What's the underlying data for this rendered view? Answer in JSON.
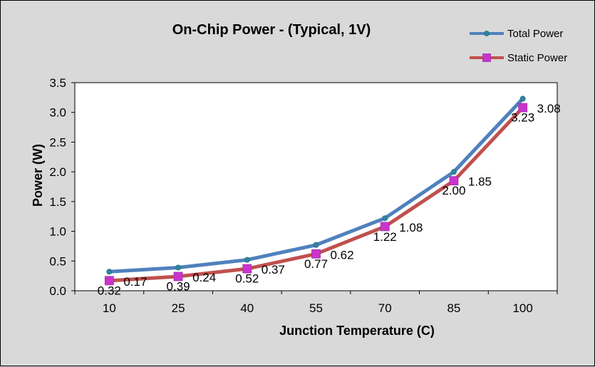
{
  "chart_data": {
    "type": "line",
    "title": "On-Chip Power - (Typical, 1V)",
    "xlabel": "Junction Temperature (C)",
    "ylabel": "Power (W)",
    "categories": [
      "10",
      "25",
      "40",
      "55",
      "70",
      "85",
      "100"
    ],
    "ylim": [
      0,
      3.5
    ],
    "yticks": [
      "0.0",
      "0.5",
      "1.0",
      "1.5",
      "2.0",
      "2.5",
      "3.0",
      "3.5"
    ],
    "grid": false,
    "legend_position": "top-right",
    "series": [
      {
        "name": "Total Power",
        "color": "#4f81bd",
        "marker_color": "#31859c",
        "marker": "circle",
        "values": [
          0.32,
          0.39,
          0.52,
          0.77,
          1.22,
          2.0,
          3.23
        ],
        "labels": [
          "0.32",
          "0.39",
          "0.52",
          "0.77",
          "1.22",
          "2.00",
          "3.23"
        ]
      },
      {
        "name": "Static Power",
        "color": "#c0504d",
        "marker_color": "#cc33cc",
        "marker": "square",
        "values": [
          0.17,
          0.24,
          0.37,
          0.62,
          1.08,
          1.85,
          3.08
        ],
        "labels": [
          "0.17",
          "0.24",
          "0.37",
          "0.62",
          "1.08",
          "1.85",
          "3.08"
        ]
      }
    ]
  }
}
